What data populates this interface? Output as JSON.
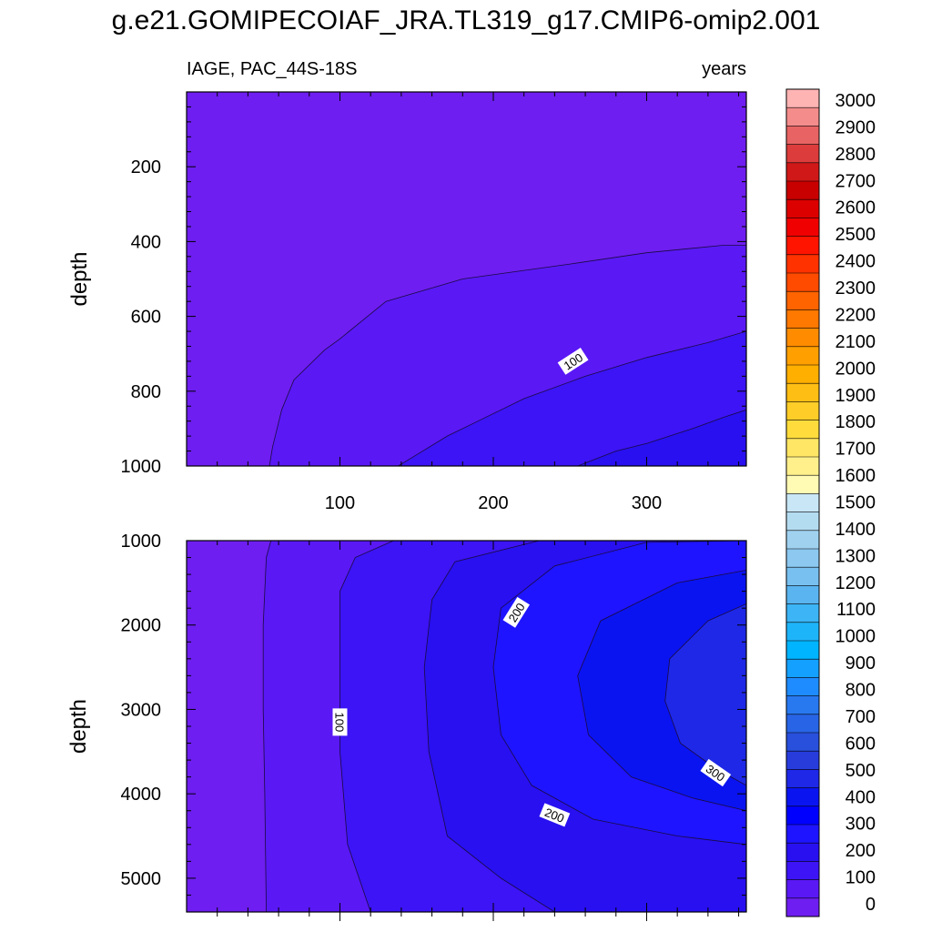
{
  "title": "g.e21.GOMIPECOIAF_JRA.TL319_g17.CMIP6-omip2.001",
  "chart_data": [
    {
      "type": "contour",
      "panel": "upper",
      "left_label": "IAGE, PAC_44S-18S",
      "right_label": "years",
      "xlabel": "",
      "ylabel": "depth",
      "xlim": [
        0,
        365
      ],
      "ylim": [
        0,
        1000
      ],
      "y_inverted": true,
      "xticks": [
        100,
        200,
        300
      ],
      "yticks": [
        200,
        400,
        600,
        800,
        1000
      ],
      "contour_lines": [
        {
          "level": 50,
          "points": [
            [
              54,
              1000
            ],
            [
              56,
              950
            ],
            [
              62,
              850
            ],
            [
              70,
              770
            ],
            [
              90,
              690
            ],
            [
              100,
              660
            ],
            [
              130,
              560
            ],
            [
              180,
              500
            ],
            [
              250,
              460
            ],
            [
              300,
              430
            ],
            [
              350,
              410
            ],
            [
              365,
              410
            ]
          ]
        },
        {
          "level": 100,
          "points": [
            [
              138,
              1000
            ],
            [
              150,
              970
            ],
            [
              170,
              920
            ],
            [
              190,
              880
            ],
            [
              220,
              820
            ],
            [
              260,
              760
            ],
            [
              300,
              710
            ],
            [
              340,
              670
            ],
            [
              365,
              640
            ]
          ]
        },
        {
          "level": 150,
          "points": [
            [
              255,
              1000
            ],
            [
              280,
              960
            ],
            [
              300,
              940
            ],
            [
              330,
              900
            ],
            [
              350,
              870
            ],
            [
              365,
              850
            ]
          ]
        }
      ],
      "contour_labels": [
        {
          "text": "100",
          "x": 252,
          "y": 720,
          "angle": -33
        }
      ]
    },
    {
      "type": "contour",
      "panel": "lower",
      "xlabel": "",
      "ylabel": "depth",
      "xlim": [
        0,
        365
      ],
      "ylim": [
        1000,
        5400
      ],
      "y_inverted": true,
      "xticks": [
        100,
        200,
        300
      ],
      "yticks": [
        1000,
        2000,
        3000,
        4000,
        5000
      ],
      "contour_lines": [
        {
          "level": 50,
          "points": [
            [
              55,
              1000
            ],
            [
              52,
              1200
            ],
            [
              50,
              2000
            ],
            [
              50,
              3000
            ],
            [
              51,
              4000
            ],
            [
              52,
              5400
            ]
          ]
        },
        {
          "level": 100,
          "points": [
            [
              135,
              1000
            ],
            [
              110,
              1200
            ],
            [
              100,
              1600
            ],
            [
              100,
              2500
            ],
            [
              100,
              3500
            ],
            [
              105,
              4600
            ],
            [
              120,
              5400
            ]
          ]
        },
        {
          "level": 150,
          "points": [
            [
              230,
              1000
            ],
            [
              175,
              1250
            ],
            [
              160,
              1700
            ],
            [
              155,
              2500
            ],
            [
              158,
              3500
            ],
            [
              170,
              4500
            ],
            [
              205,
              5000
            ],
            [
              240,
              5400
            ]
          ]
        },
        {
          "level": 200,
          "points": [
            [
              365,
              1000
            ],
            [
              300,
              1020
            ],
            [
              240,
              1300
            ],
            [
              205,
              1800
            ],
            [
              200,
              2500
            ],
            [
              205,
              3300
            ],
            [
              225,
              3900
            ],
            [
              265,
              4300
            ],
            [
              320,
              4500
            ],
            [
              365,
              4600
            ]
          ]
        },
        {
          "level": 250,
          "points": [
            [
              365,
              1350
            ],
            [
              320,
              1500
            ],
            [
              270,
              1950
            ],
            [
              255,
              2600
            ],
            [
              262,
              3300
            ],
            [
              290,
              3800
            ],
            [
              330,
              4050
            ],
            [
              365,
              4200
            ]
          ]
        },
        {
          "level": 300,
          "points": [
            [
              365,
              1750
            ],
            [
              340,
              1950
            ],
            [
              315,
              2400
            ],
            [
              312,
              2900
            ],
            [
              322,
              3400
            ],
            [
              345,
              3700
            ],
            [
              365,
              3900
            ]
          ]
        }
      ],
      "contour_labels": [
        {
          "text": "100",
          "x": 100,
          "y": 3150,
          "angle": 90
        },
        {
          "text": "200",
          "x": 215,
          "y": 1850,
          "angle": -58
        },
        {
          "text": "200",
          "x": 240,
          "y": 4250,
          "angle": 22
        },
        {
          "text": "300",
          "x": 345,
          "y": 3750,
          "angle": 35
        }
      ]
    },
    {
      "type": "colorbar",
      "levels": [
        "3000",
        "2900",
        "2800",
        "2700",
        "2600",
        "2500",
        "2400",
        "2300",
        "2200",
        "2100",
        "2000",
        "1900",
        "1800",
        "1700",
        "1600",
        "1500",
        "1400",
        "1300",
        "1200",
        "1100",
        "1000",
        "900",
        "800",
        "700",
        "600",
        "500",
        "400",
        "300",
        "200",
        "100",
        "0"
      ]
    }
  ],
  "colors": {
    "colorbar_top_to_bottom": [
      "#ffb4b4",
      "#f48c8c",
      "#e86464",
      "#dc3c3c",
      "#d01818",
      "#c80000",
      "#dc0000",
      "#f00000",
      "#ff1400",
      "#ff3200",
      "#ff4b00",
      "#ff6400",
      "#ff7800",
      "#ff8c00",
      "#ffa000",
      "#ffaf00",
      "#ffbe14",
      "#ffcd28",
      "#ffdc3c",
      "#ffe664",
      "#fff08c",
      "#fffab4",
      "#c8e6f5",
      "#b4dcf0",
      "#a0d2f0",
      "#8cc8f0",
      "#78c0f0",
      "#5ab4f0",
      "#3cb4f5",
      "#1eb4fa",
      "#00b4ff",
      "#14a0ff",
      "#1e8cff",
      "#2878f0",
      "#2864e6",
      "#2850dc",
      "#283cdc",
      "#1e28e6",
      "#0a14f0",
      "#0000ff",
      "#1e14ff",
      "#2810f0",
      "#3c14f5",
      "#5a18f5",
      "#6e1ef0"
    ],
    "upper_bands": [
      "#6e1ef0",
      "#5a18f5",
      "#3c14f5",
      "#2810f0"
    ],
    "lower_bands": [
      "#6e1ef0",
      "#5a18f5",
      "#3c14f5",
      "#2810f0",
      "#1e14ff",
      "#0a14f0",
      "#1e28e6"
    ]
  }
}
